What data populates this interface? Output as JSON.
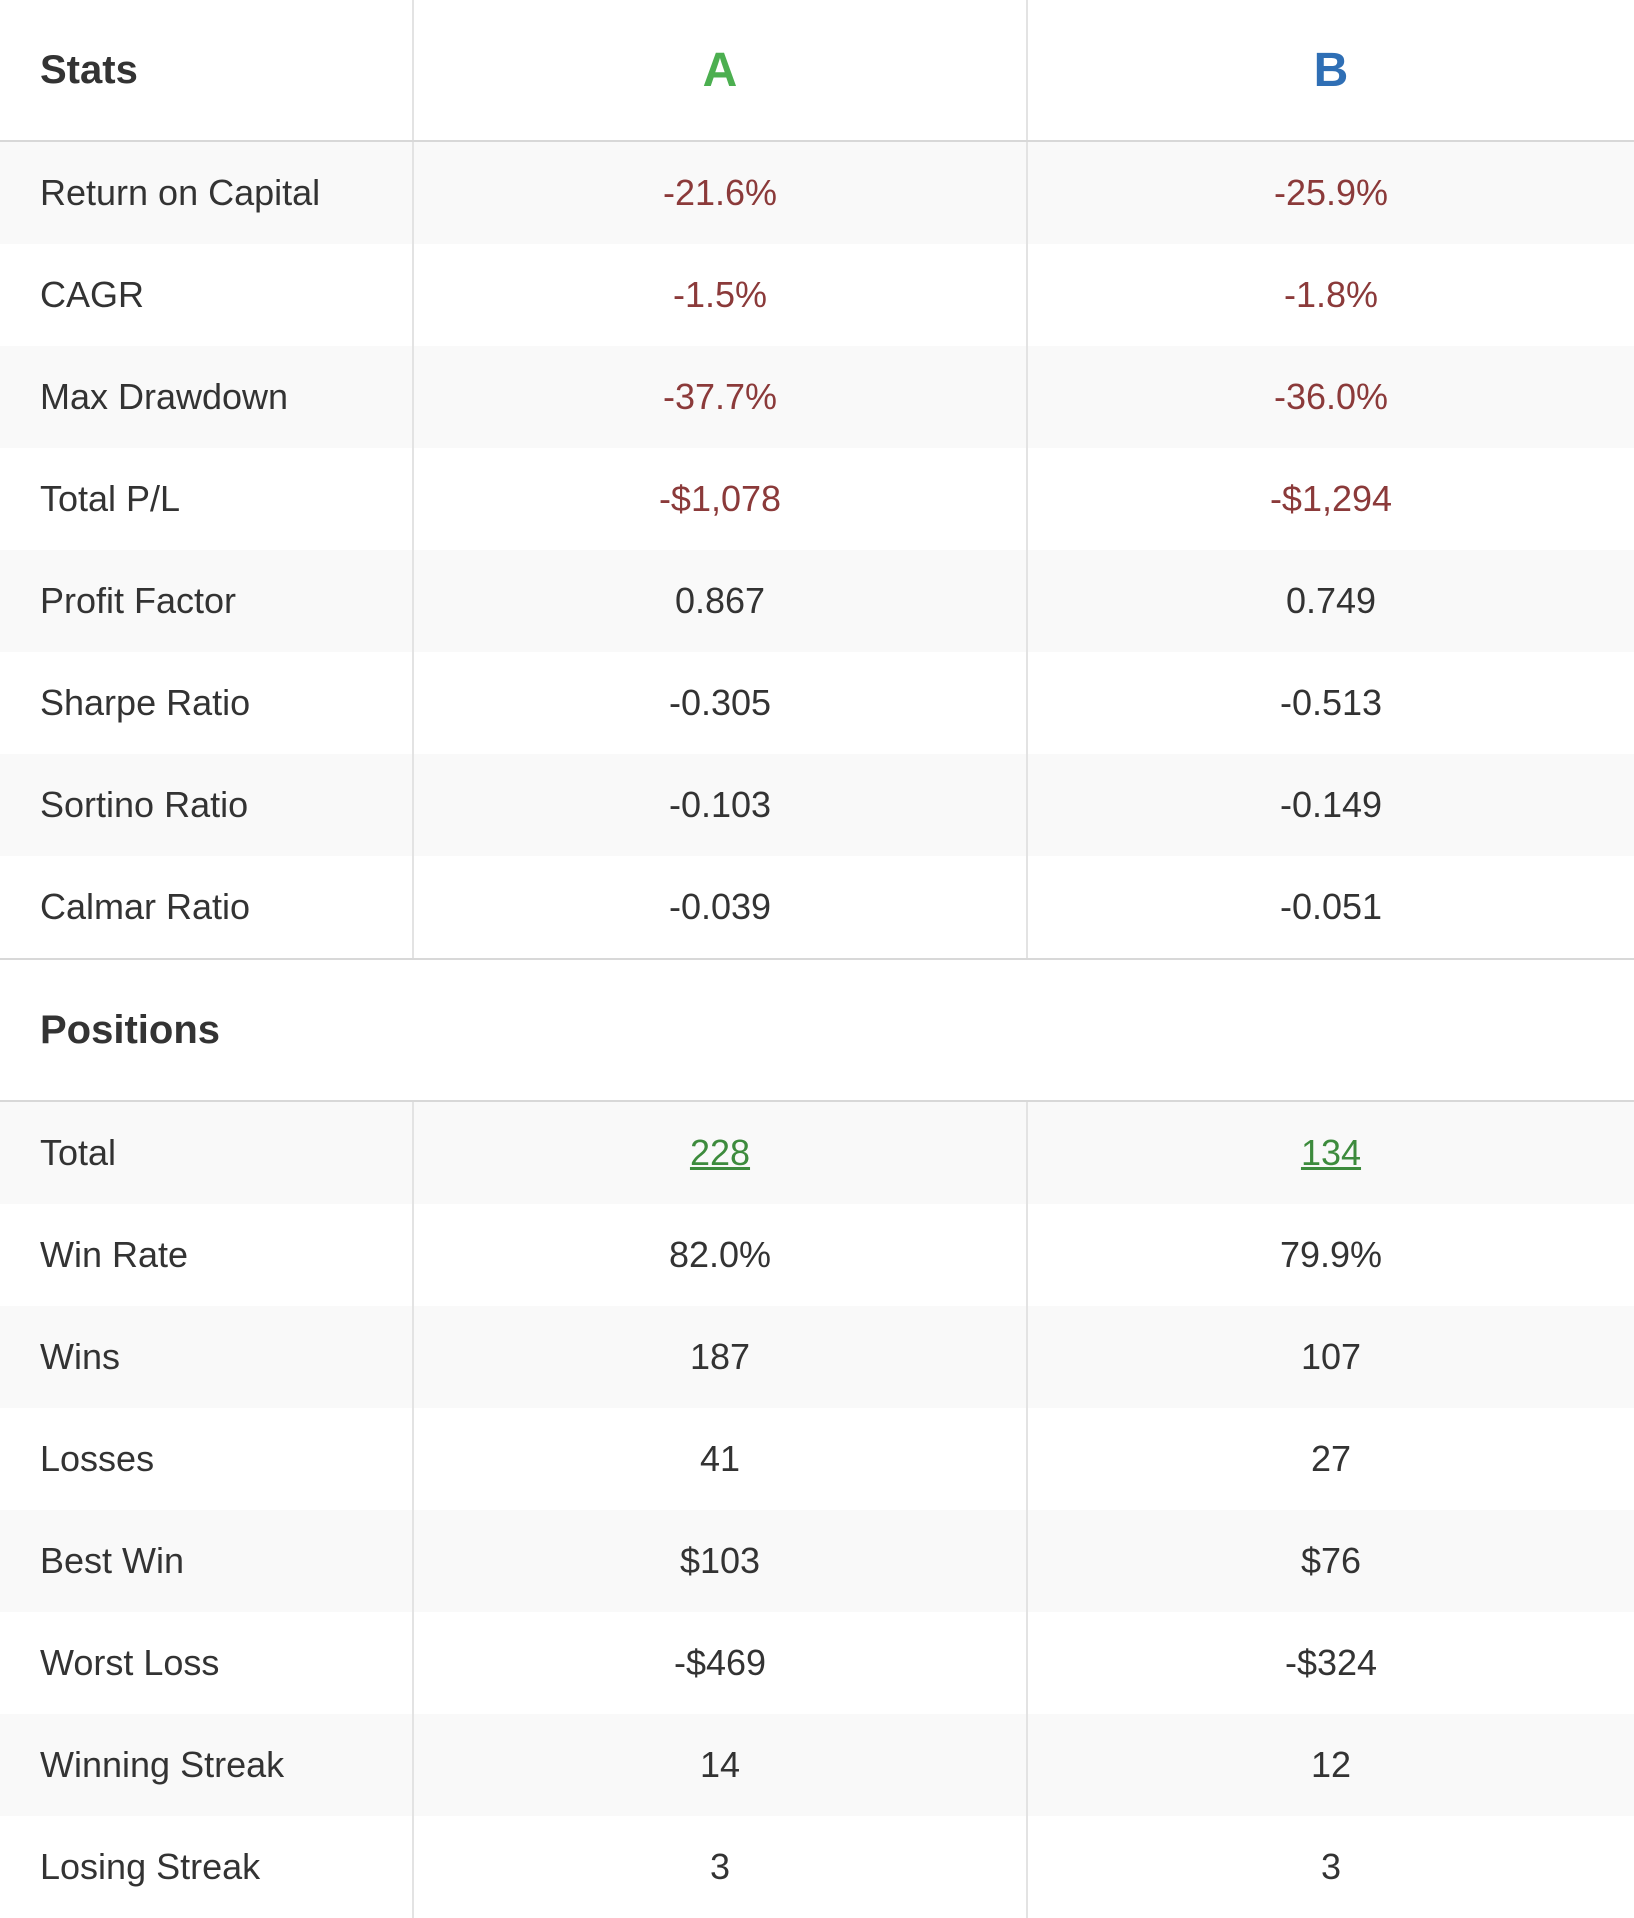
{
  "header": {
    "title": "Stats",
    "col_a": "A",
    "col_b": "B",
    "col_a_color": "#4caf50",
    "col_b_color": "#2f6fb5"
  },
  "stats_rows": [
    {
      "label": "Return on Capital",
      "a": "-21.6%",
      "b": "-25.9%",
      "negative": true
    },
    {
      "label": "CAGR",
      "a": "-1.5%",
      "b": "-1.8%",
      "negative": true
    },
    {
      "label": "Max Drawdown",
      "a": "-37.7%",
      "b": "-36.0%",
      "negative": true
    },
    {
      "label": "Total P/L",
      "a": "-$1,078",
      "b": "-$1,294",
      "negative": true
    },
    {
      "label": "Profit Factor",
      "a": "0.867",
      "b": "0.749",
      "negative": false
    },
    {
      "label": "Sharpe Ratio",
      "a": "-0.305",
      "b": "-0.513",
      "negative": false
    },
    {
      "label": "Sortino Ratio",
      "a": "-0.103",
      "b": "-0.149",
      "negative": false
    },
    {
      "label": "Calmar Ratio",
      "a": "-0.039",
      "b": "-0.051",
      "negative": false
    }
  ],
  "positions": {
    "title": "Positions",
    "total": {
      "label": "Total",
      "a": "228",
      "b": "134"
    },
    "rows": [
      {
        "label": "Win Rate",
        "a": "82.0%",
        "b": "79.9%"
      },
      {
        "label": "Wins",
        "a": "187",
        "b": "107"
      },
      {
        "label": "Losses",
        "a": "41",
        "b": "27"
      },
      {
        "label": "Best Win",
        "a": "$103",
        "b": "$76"
      },
      {
        "label": "Worst Loss",
        "a": "-$469",
        "b": "-$324"
      },
      {
        "label": "Winning Streak",
        "a": "14",
        "b": "12"
      },
      {
        "label": "Losing Streak",
        "a": "3",
        "b": "3"
      }
    ]
  }
}
